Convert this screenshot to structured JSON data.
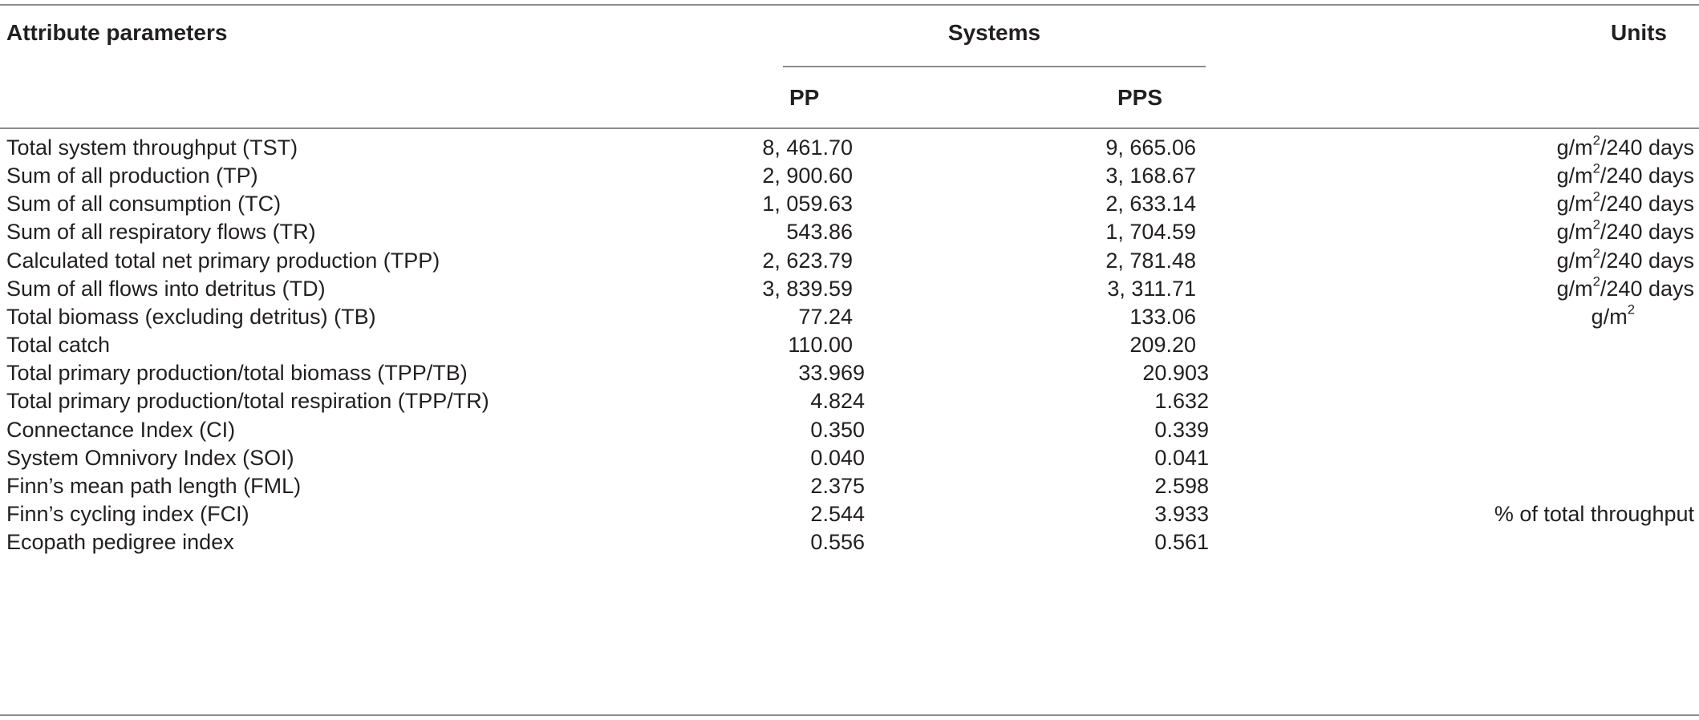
{
  "table": {
    "header": {
      "attribute": "Attribute parameters",
      "systems": "Systems",
      "units": "Units",
      "pp": "PP",
      "pps": "PPS"
    },
    "rows": [
      {
        "attribute": "Total system throughput (TST)",
        "pp": "8, 461.70",
        "pps": "9, 665.06",
        "units_main": "g/m",
        "units_sup": "2",
        "units_tail": "/240 days"
      },
      {
        "attribute": "Sum of all production (TP)",
        "pp": "2, 900.60",
        "pps": "3, 168.67",
        "units_main": "g/m",
        "units_sup": "2",
        "units_tail": "/240 days"
      },
      {
        "attribute": "Sum of all consumption (TC)",
        "pp": "1, 059.63",
        "pps": "2, 633.14",
        "units_main": "g/m",
        "units_sup": "2",
        "units_tail": "/240 days"
      },
      {
        "attribute": "Sum of all respiratory flows (TR)",
        "pp": "543.86",
        "pps": "1, 704.59",
        "units_main": "g/m",
        "units_sup": "2",
        "units_tail": "/240 days"
      },
      {
        "attribute": "Calculated total net primary production (TPP)",
        "pp": "2, 623.79",
        "pps": "2, 781.48",
        "units_main": "g/m",
        "units_sup": "2",
        "units_tail": "/240 days"
      },
      {
        "attribute": "Sum of all flows into detritus (TD)",
        "pp": "3, 839.59",
        "pps": "3, 311.71",
        "units_main": "g/m",
        "units_sup": "2",
        "units_tail": "/240 days"
      },
      {
        "attribute": "Total biomass (excluding detritus) (TB)",
        "pp": "77.24",
        "pps": "133.06",
        "units_main": "g/m",
        "units_sup": "2",
        "units_tail": "",
        "units_center": true
      },
      {
        "attribute": "Total catch",
        "pp": "110.00",
        "pps": "209.20",
        "units_main": "",
        "units_sup": "",
        "units_tail": ""
      },
      {
        "attribute": "Total primary production/total biomass (TPP/TB)",
        "pp": "33.969",
        "pps": "20.903",
        "units_main": "",
        "units_sup": "",
        "units_tail": "",
        "three_dec": true
      },
      {
        "attribute": "Total primary production/total respiration (TPP/TR)",
        "pp": "4.824",
        "pps": "1.632",
        "units_main": "",
        "units_sup": "",
        "units_tail": "",
        "three_dec": true
      },
      {
        "attribute": "Connectance Index (CI)",
        "pp": "0.350",
        "pps": "0.339",
        "units_main": "",
        "units_sup": "",
        "units_tail": "",
        "three_dec": true
      },
      {
        "attribute": "System Omnivory Index (SOI)",
        "pp": "0.040",
        "pps": "0.041",
        "units_main": "",
        "units_sup": "",
        "units_tail": "",
        "three_dec": true
      },
      {
        "attribute": "Finn’s mean path length (FML)",
        "pp": "2.375",
        "pps": "2.598",
        "units_main": "",
        "units_sup": "",
        "units_tail": "",
        "three_dec": true
      },
      {
        "attribute": "Finn’s cycling index (FCI)",
        "pp": "2.544",
        "pps": "3.933",
        "units_main": "% of total throughput",
        "units_sup": "",
        "units_tail": "",
        "three_dec": true
      },
      {
        "attribute": "Ecopath pedigree index",
        "pp": "0.556",
        "pps": "0.561",
        "units_main": "",
        "units_sup": "",
        "units_tail": "",
        "three_dec": true
      }
    ]
  }
}
